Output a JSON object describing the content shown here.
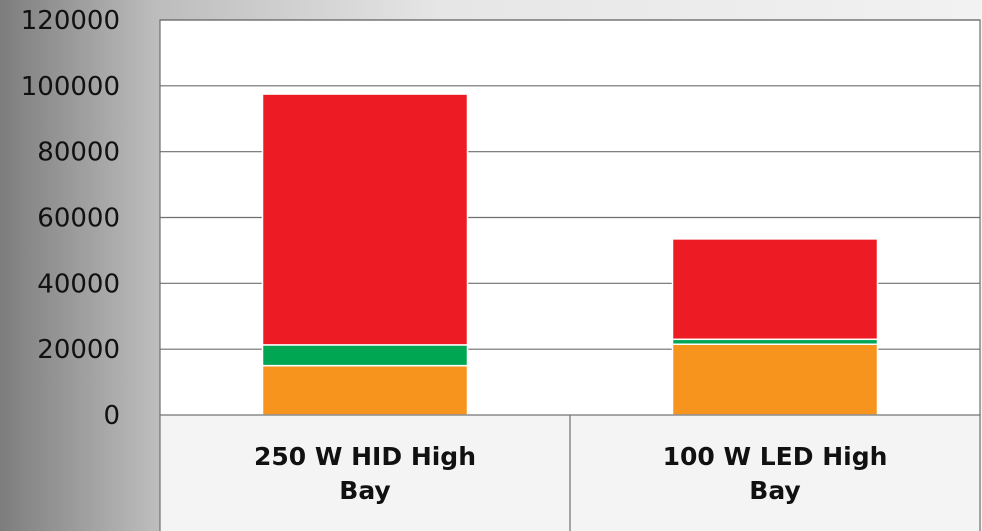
{
  "chart_data": {
    "type": "bar",
    "stacked": true,
    "categories": [
      "250 W HID High Bay",
      "100 W LED High Bay"
    ],
    "category_lines": [
      [
        "250 W HID High",
        "Bay"
      ],
      [
        "100 W LED High",
        "Bay"
      ]
    ],
    "series": [
      {
        "values": [
          15000,
          21500
        ],
        "color": "#F7941E"
      },
      {
        "values": [
          6300,
          1500
        ],
        "color": "#00A651"
      },
      {
        "values": [
          76200,
          30500
        ],
        "color": "#ED1C24"
      }
    ],
    "y_ticks": [
      "0",
      "20000",
      "40000",
      "60000",
      "80000",
      "100000",
      "120000"
    ],
    "ylim": [
      0,
      120000
    ],
    "grid": true,
    "legend": "none",
    "title": "",
    "xlabel": "",
    "ylabel": ""
  }
}
